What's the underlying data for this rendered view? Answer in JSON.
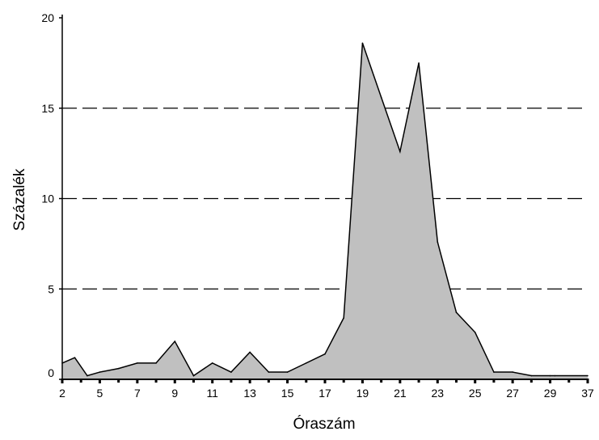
{
  "chart_data": {
    "type": "area",
    "xlabel": "Óraszám",
    "ylabel": "Százalék",
    "ylim": [
      0,
      20
    ],
    "yticks": [
      0,
      5,
      10,
      15,
      20
    ],
    "gridlines": [
      5,
      10,
      15
    ],
    "grid_style": "dashed",
    "xticks": [
      2,
      5,
      7,
      9,
      11,
      13,
      15,
      17,
      19,
      21,
      23,
      25,
      27,
      29,
      37
    ],
    "x": [
      2,
      3,
      4,
      5,
      6,
      7,
      8,
      9,
      10,
      11,
      12,
      13,
      14,
      15,
      16,
      17,
      18,
      19,
      20,
      21,
      22,
      23,
      24,
      25,
      26,
      27,
      28,
      29,
      30,
      37
    ],
    "values": [
      0.9,
      1.2,
      0.2,
      0.4,
      0.6,
      0.9,
      0.9,
      2.1,
      0.2,
      0.9,
      0.4,
      1.5,
      0.4,
      0.4,
      0.9,
      1.4,
      3.4,
      18.6,
      15.6,
      12.6,
      17.5,
      7.6,
      3.7,
      2.6,
      0.4,
      0.4,
      0.2,
      0.2,
      0.2,
      0.2
    ],
    "fill_color": "#c0c0c0",
    "line_color": "#000000"
  }
}
